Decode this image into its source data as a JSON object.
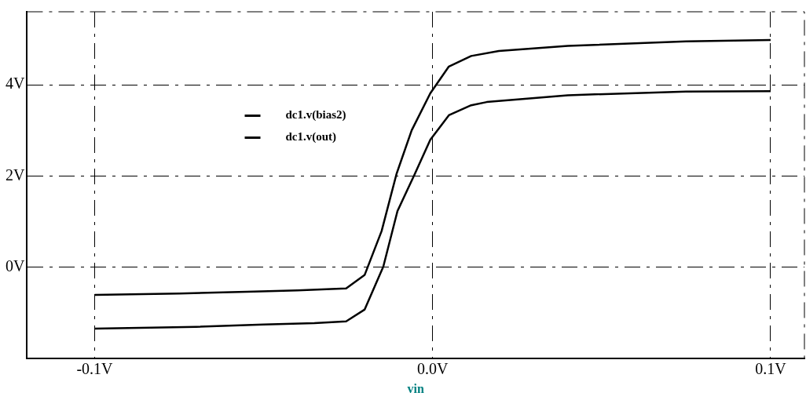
{
  "chart_data": {
    "type": "line",
    "xlabel": "vin",
    "xlim": [
      -0.12,
      0.11
    ],
    "ylim": [
      -2,
      5.6
    ],
    "xticks": [
      {
        "value": -0.1,
        "label": "-0.1V"
      },
      {
        "value": 0,
        "label": "0.0V"
      },
      {
        "value": 0.1,
        "label": "0.1V"
      }
    ],
    "yticks": [
      {
        "value": 0,
        "label": "0V"
      },
      {
        "value": 2,
        "label": "2V"
      },
      {
        "value": 4,
        "label": "4V"
      }
    ],
    "grid": true,
    "legend": "top left",
    "marker": "none",
    "line_style": "solid",
    "series": [
      {
        "name": "dc1.v(bias2)",
        "color": "#000000",
        "x": [
          -0.1,
          -0.075,
          -0.055,
          -0.04,
          -0.03,
          -0.0256,
          -0.0201,
          -0.0151,
          -0.0107,
          -0.0062,
          -0.0007,
          0.0048,
          0.0114,
          0.0196,
          0.04,
          0.075,
          0.1
        ],
        "values": [
          -0.61,
          -0.58,
          -0.54,
          -0.51,
          -0.48,
          -0.47,
          -0.17,
          0.79,
          2.04,
          3.0,
          3.81,
          4.4,
          4.63,
          4.74,
          4.85,
          4.95,
          4.98
        ]
      },
      {
        "name": "dc1.v(out)",
        "color": "#000000",
        "x": [
          -0.1,
          -0.07,
          -0.05,
          -0.035,
          -0.0256,
          -0.0201,
          -0.0146,
          -0.0104,
          -0.0053,
          -0.0007,
          0.0048,
          0.0114,
          0.016,
          0.04,
          0.075,
          0.1
        ],
        "values": [
          -1.35,
          -1.31,
          -1.26,
          -1.23,
          -1.19,
          -0.93,
          0.01,
          1.23,
          2.04,
          2.79,
          3.33,
          3.55,
          3.62,
          3.77,
          3.85,
          3.86
        ]
      }
    ]
  }
}
